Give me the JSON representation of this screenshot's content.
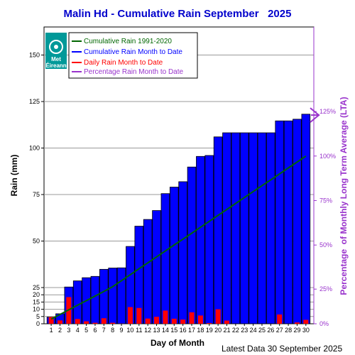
{
  "chart_data": {
    "type": "bar",
    "title": "Malin Hd - Cumulative Rain September   2025",
    "xlabel": "Day of Month",
    "ylabel": "Rain (mm)",
    "ylabel_right": "Percentage  of Monthly Long Term Average (LTA)",
    "footer": "Latest Data 30 September 2025",
    "ylim": [
      0,
      160
    ],
    "yticks": [
      0,
      5,
      10,
      15,
      20,
      25,
      50,
      75,
      100,
      125,
      150
    ],
    "yticks_right": [
      "0%",
      "25%",
      "50%",
      "75%",
      "100%",
      "125%"
    ],
    "categories": [
      1,
      2,
      3,
      4,
      5,
      6,
      7,
      8,
      9,
      10,
      11,
      12,
      13,
      14,
      15,
      16,
      17,
      18,
      19,
      20,
      21,
      22,
      23,
      24,
      25,
      26,
      27,
      28,
      29,
      30
    ],
    "grid": true,
    "legend_position": "top-left",
    "lta_total": 95.7,
    "percentage_to_date": 1.23,
    "series": [
      {
        "name": "Cumulative Rain 1991-2020",
        "type": "line",
        "color": "#006600",
        "values": [
          3.2,
          6.4,
          9.6,
          12.8,
          16.0,
          19.1,
          22.3,
          25.5,
          28.7,
          31.9,
          35.1,
          38.3,
          41.5,
          44.7,
          47.9,
          51.0,
          54.2,
          57.4,
          60.6,
          63.8,
          67.0,
          70.2,
          73.4,
          76.6,
          79.8,
          82.9,
          86.1,
          89.3,
          92.5,
          95.7
        ]
      },
      {
        "name": "Cumulative Rain Month to Date",
        "type": "bar",
        "color": "#0000ff",
        "values": [
          4.6,
          6.9,
          25.3,
          28.6,
          30.3,
          31.0,
          34.8,
          35.5,
          35.6,
          47.1,
          58.0,
          61.6,
          66.4,
          75.5,
          79.0,
          81.9,
          89.8,
          95.5,
          96.0,
          106.0,
          108.2,
          108.2,
          108.2,
          108.2,
          108.2,
          108.2,
          114.6,
          114.6,
          115.5,
          118.2
        ]
      },
      {
        "name": "Daily Rain Month to Date",
        "type": "bar",
        "color": "#ff0000",
        "values": [
          4.6,
          2.3,
          18.4,
          3.3,
          1.7,
          0.7,
          3.8,
          0.7,
          0.1,
          11.5,
          10.9,
          3.6,
          4.8,
          9.1,
          3.5,
          2.9,
          7.9,
          5.7,
          0.5,
          10.0,
          2.2,
          0,
          0,
          0,
          0,
          0,
          6.4,
          0,
          0.9,
          2.7
        ]
      },
      {
        "name": "Percentage Rain Month to Date",
        "type": "marker",
        "color": "#9933cc"
      }
    ]
  },
  "logo": {
    "line1": "Met",
    "line2": "Éireann"
  }
}
